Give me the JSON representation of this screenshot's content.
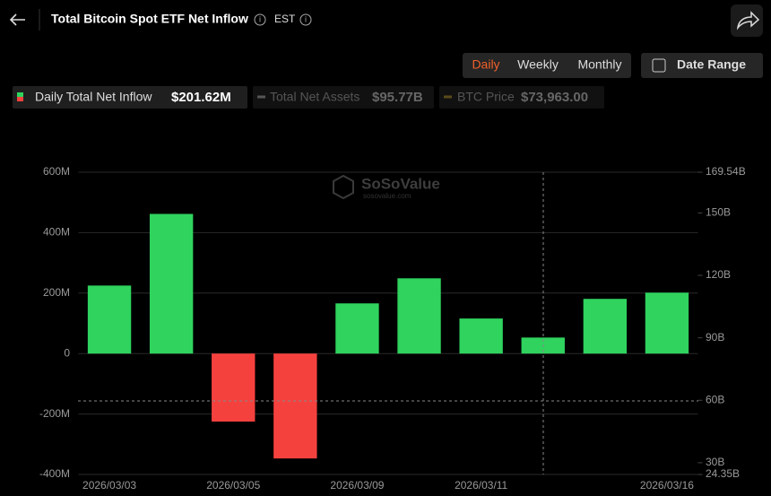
{
  "header": {
    "title": "Total Bitcoin Spot ETF Net Inflow",
    "timezone": "EST"
  },
  "controls": {
    "tabs": [
      "Daily",
      "Weekly",
      "Monthly"
    ],
    "date_range": "Date Range"
  },
  "legend": [
    {
      "label": "Daily Total Net Inflow",
      "value": "$201.62M"
    },
    {
      "label": "Total Net Assets",
      "value": "$95.77B"
    },
    {
      "label": "BTC Price",
      "value": "$73,963.00"
    }
  ],
  "watermark": {
    "brand": "SoSoValue",
    "site": "sosovalue.com"
  },
  "chart_data": {
    "type": "bar",
    "categories": [
      "2026/03/03",
      null,
      "2026/03/05",
      null,
      "2026/03/09",
      null,
      "2026/03/11",
      null,
      null,
      "2026/03/16"
    ],
    "values": [
      225,
      462,
      -225,
      -347,
      166,
      249,
      116,
      53,
      181,
      201.62
    ],
    "positive_color": "#2fd35e",
    "negative_color": "#f5413e",
    "ylim": [
      -400,
      600
    ],
    "yticks": [
      {
        "value": 600,
        "label": "600M"
      },
      {
        "value": 400,
        "label": "400M"
      },
      {
        "value": 200,
        "label": "200M"
      },
      0,
      {
        "value": -200,
        "label": "-200M"
      },
      {
        "value": -400,
        "label": "-400M"
      }
    ],
    "y2lim": [
      24.35,
      169.54
    ],
    "y2ticks": [
      {
        "value": 169.54,
        "label": "169.54B"
      },
      {
        "value": 150,
        "label": "150B"
      },
      {
        "value": 120,
        "label": "120B"
      },
      {
        "value": 90,
        "label": "90B"
      },
      {
        "value": 60,
        "label": "60B"
      },
      {
        "value": 30,
        "label": "30B"
      },
      {
        "value": 24.35,
        "label": "24.35B"
      }
    ],
    "grid": true
  }
}
